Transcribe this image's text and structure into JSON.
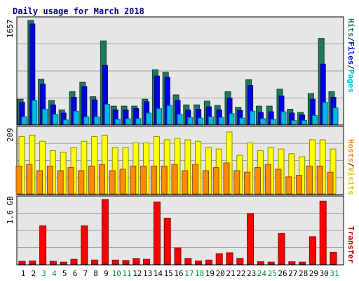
{
  "chart_data": [
    {
      "type": "bar",
      "title": "Daily usage for March 2018",
      "ylabel_top": "1657",
      "categories": [
        "1",
        "2",
        "3",
        "4",
        "5",
        "6",
        "7",
        "8",
        "9",
        "10",
        "11",
        "12",
        "13",
        "14",
        "15",
        "16",
        "17",
        "18",
        "19",
        "20",
        "21",
        "22",
        "23",
        "24",
        "25",
        "26",
        "27",
        "28",
        "29",
        "30",
        "31"
      ],
      "weekend_days": [
        "3",
        "4",
        "10",
        "11",
        "17",
        "18",
        "24",
        "25",
        "31"
      ],
      "side_labels": [
        "Hits",
        "/",
        "Files",
        "/",
        "Pages"
      ],
      "ylim": [
        0,
        1657
      ],
      "series": [
        {
          "name": "Hits",
          "color": "#1f7a56",
          "values": [
            400,
            1657,
            720,
            380,
            230,
            520,
            670,
            440,
            1330,
            290,
            290,
            290,
            400,
            870,
            830,
            470,
            310,
            310,
            370,
            300,
            520,
            270,
            710,
            290,
            290,
            560,
            240,
            190,
            490,
            1370,
            520
          ]
        },
        {
          "name": "Files",
          "color": "#0000e6",
          "values": [
            350,
            1600,
            640,
            310,
            180,
            430,
            600,
            390,
            940,
            230,
            230,
            250,
            360,
            770,
            750,
            380,
            230,
            240,
            280,
            230,
            420,
            220,
            620,
            190,
            200,
            450,
            180,
            150,
            400,
            960,
            430
          ]
        },
        {
          "name": "Pages",
          "color": "#00b8e8",
          "values": [
            120,
            380,
            240,
            160,
            70,
            210,
            120,
            120,
            320,
            80,
            90,
            90,
            180,
            250,
            300,
            160,
            110,
            100,
            120,
            110,
            170,
            100,
            210,
            90,
            80,
            200,
            60,
            60,
            140,
            350,
            260
          ]
        }
      ]
    },
    {
      "type": "bar",
      "ylabel_top": "209",
      "side_labels": [
        "Hosts",
        "/",
        "Visits"
      ],
      "ylim": [
        0,
        209
      ],
      "series": [
        {
          "name": "Visits",
          "color": "#ffff00",
          "values": [
            185,
            190,
            170,
            140,
            135,
            150,
            170,
            185,
            190,
            150,
            150,
            165,
            165,
            185,
            175,
            180,
            175,
            170,
            150,
            145,
            200,
            125,
            165,
            140,
            150,
            145,
            130,
            120,
            175,
            175,
            145
          ]
        },
        {
          "name": "Hosts",
          "color": "#ff8c00",
          "values": [
            90,
            95,
            75,
            90,
            75,
            85,
            75,
            90,
            95,
            75,
            80,
            90,
            90,
            90,
            90,
            95,
            75,
            95,
            75,
            85,
            100,
            75,
            70,
            85,
            95,
            80,
            55,
            60,
            90,
            90,
            70
          ]
        }
      ]
    },
    {
      "type": "bar",
      "ylabel_top": "1.6 GB",
      "side_labels": [
        "Transfer"
      ],
      "ylim": [
        0,
        1.6
      ],
      "series": [
        {
          "name": "Transfer",
          "color": "#ff0000",
          "values": [
            0.07,
            0.08,
            0.95,
            0.07,
            0.05,
            0.12,
            0.95,
            0.1,
            1.62,
            0.1,
            0.09,
            0.14,
            0.12,
            1.54,
            1.14,
            0.4,
            0.14,
            0.08,
            0.1,
            0.26,
            0.28,
            0.14,
            1.25,
            0.06,
            0.05,
            0.76,
            0.06,
            0.05,
            0.68,
            1.56,
            0.29
          ]
        }
      ]
    }
  ]
}
